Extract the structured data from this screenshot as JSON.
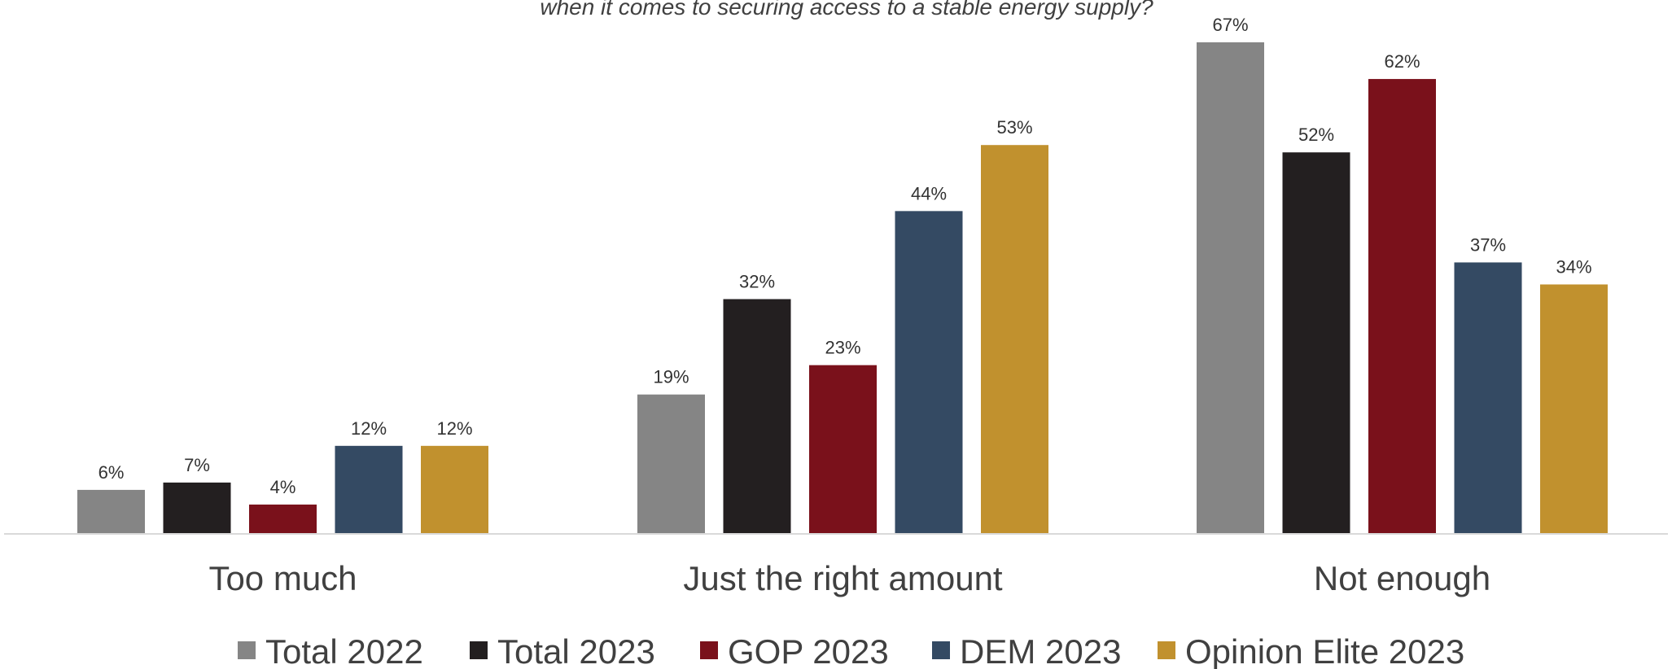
{
  "chart_data": {
    "type": "bar",
    "subtitle": "when it comes to securing access to a stable energy supply?",
    "categories": [
      "Too much",
      "Just the right amount",
      "Not enough"
    ],
    "series": [
      {
        "name": "Total 2022",
        "color": "#858585",
        "values": [
          6,
          19,
          67
        ]
      },
      {
        "name": "Total 2023",
        "color": "#231F20",
        "values": [
          7,
          32,
          52
        ]
      },
      {
        "name": "GOP 2023",
        "color": "#7A111B",
        "values": [
          4,
          23,
          62
        ]
      },
      {
        "name": "DEM 2023",
        "color": "#344A63",
        "values": [
          12,
          44,
          37
        ]
      },
      {
        "name": "Opinion Elite 2023",
        "color": "#C1912E",
        "values": [
          12,
          53,
          34
        ]
      }
    ],
    "value_suffix": "%",
    "ylim": [
      0,
      70
    ],
    "grid": false,
    "legend_position": "bottom"
  }
}
